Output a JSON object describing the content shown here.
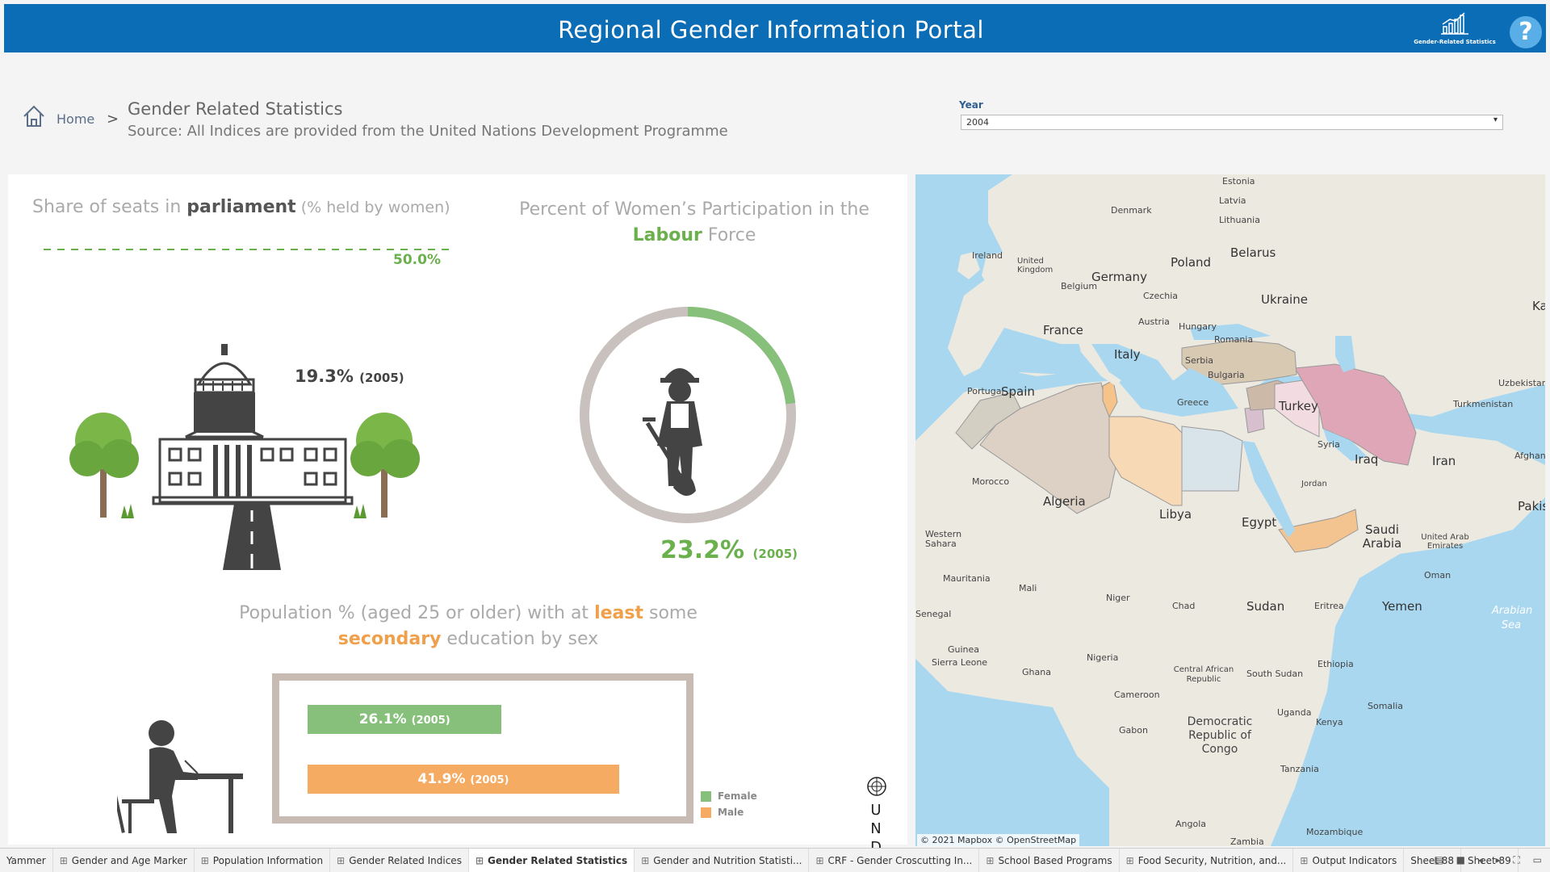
{
  "header": {
    "title": "Regional Gender Information Portal",
    "logo_caption": "Gender-Related Statistics",
    "help_label": "?"
  },
  "breadcrumb": {
    "home": "Home",
    "separator": ">",
    "title": "Gender Related Statistics",
    "source": "Source:  All Indices are provided from the United Nations Development Programme"
  },
  "filter": {
    "label": "Year",
    "value": "2004"
  },
  "parliament": {
    "title_a": "Share of seats in ",
    "title_b": "parliament",
    "title_c": " (% held by women)",
    "target": "50.0%",
    "value": "19.3%",
    "year": "(2005)"
  },
  "labour": {
    "title_a": "Percent of Women’s Participation in the ",
    "title_b": "Labour",
    "title_c": " Force",
    "value": "23.2%",
    "year": "(2005)",
    "fraction": 0.232
  },
  "education": {
    "title_a": "Population % (aged 25 or older) with at ",
    "title_b": "least",
    "title_c": " some ",
    "title_d": "secondary",
    "title_e": " education by sex",
    "female": {
      "value": "26.1%",
      "year": "(2005)",
      "pct": 26.1
    },
    "male": {
      "value": "41.9%",
      "year": "(2005)",
      "pct": 41.9
    },
    "legend_female": "Female",
    "legend_male": "Male",
    "female_color": "#86c07a",
    "male_color": "#f5ab62"
  },
  "undp": {
    "letters": "U N D P"
  },
  "map": {
    "attribution": "© 2021 Mapbox © OpenStreetMap",
    "labels": {
      "estonia": "Estonia",
      "latvia": "Latvia",
      "lithuania": "Lithuania",
      "denmark": "Denmark",
      "belarus": "Belarus",
      "ireland": "Ireland",
      "uk": "United Kingdom",
      "germany": "Germany",
      "poland": "Poland",
      "belgium": "Belgium",
      "czechia": "Czechia",
      "ukraine": "Ukraine",
      "ka": "Ka",
      "austria": "Austria",
      "hungary": "Hungary",
      "france": "France",
      "romania": "Romania",
      "italy": "Italy",
      "serbia": "Serbia",
      "bulgaria": "Bulgaria",
      "uzbekistan": "Uzbekistan",
      "portugal": "Portugal",
      "spain": "Spain",
      "turkey": "Turkey",
      "turkmenistan": "Turkmenistan",
      "greece": "Greece",
      "syria": "Syria",
      "iraq": "Iraq",
      "iran": "Iran",
      "afghanistan": "Afghanist",
      "morocco": "Morocco",
      "algeria": "Algeria",
      "libya": "Libya",
      "egypt": "Egypt",
      "jordan": "Jordan",
      "pakistan": "Pakis",
      "saudi": "Saudi Arabia",
      "uae": "United Arab Emirates",
      "w_sahara": "Western Sahara",
      "mauritania": "Mauritania",
      "mali": "Mali",
      "oman": "Oman",
      "arabian_sea": "Arabian Sea",
      "niger": "Niger",
      "chad": "Chad",
      "sudan": "Sudan",
      "eritrea": "Eritrea",
      "yemen": "Yemen",
      "senegal": "Senegal",
      "guinea": "Guinea",
      "sierra_leone": "Sierra Leone",
      "nigeria": "Nigeria",
      "ethiopia": "Ethiopia",
      "ghana": "Ghana",
      "car": "Central African Republic",
      "south_sudan": "South Sudan",
      "cameroon": "Cameroon",
      "somalia": "Somalia",
      "uganda": "Uganda",
      "gabon": "Gabon",
      "drc": "Democratic Republic of Congo",
      "kenya": "Kenya",
      "tanzania": "Tanzania",
      "angola": "Angola",
      "zambia": "Zambia",
      "mozambique": "Mozambique"
    }
  },
  "tabs": [
    {
      "label": "Yammer",
      "icon": false
    },
    {
      "label": "Gender and Age Marker",
      "icon": true
    },
    {
      "label": "Population Information",
      "icon": true
    },
    {
      "label": "Gender Related Indices",
      "icon": true
    },
    {
      "label": "Gender Related Statistics",
      "icon": true,
      "active": true
    },
    {
      "label": "Gender and Nutrition Statisti...",
      "icon": true
    },
    {
      "label": "CRF - Gender Croscutting In...",
      "icon": true
    },
    {
      "label": "School Based Programs",
      "icon": true
    },
    {
      "label": "Food Security, Nutrition, and...",
      "icon": true
    },
    {
      "label": "Output Indicators",
      "icon": true
    },
    {
      "label": "Sheet 88",
      "icon": false
    },
    {
      "label": "Sheet 89",
      "icon": false
    }
  ],
  "tab_controls": "▤ ■ ◂ ▸ ⛶ ▭"
}
